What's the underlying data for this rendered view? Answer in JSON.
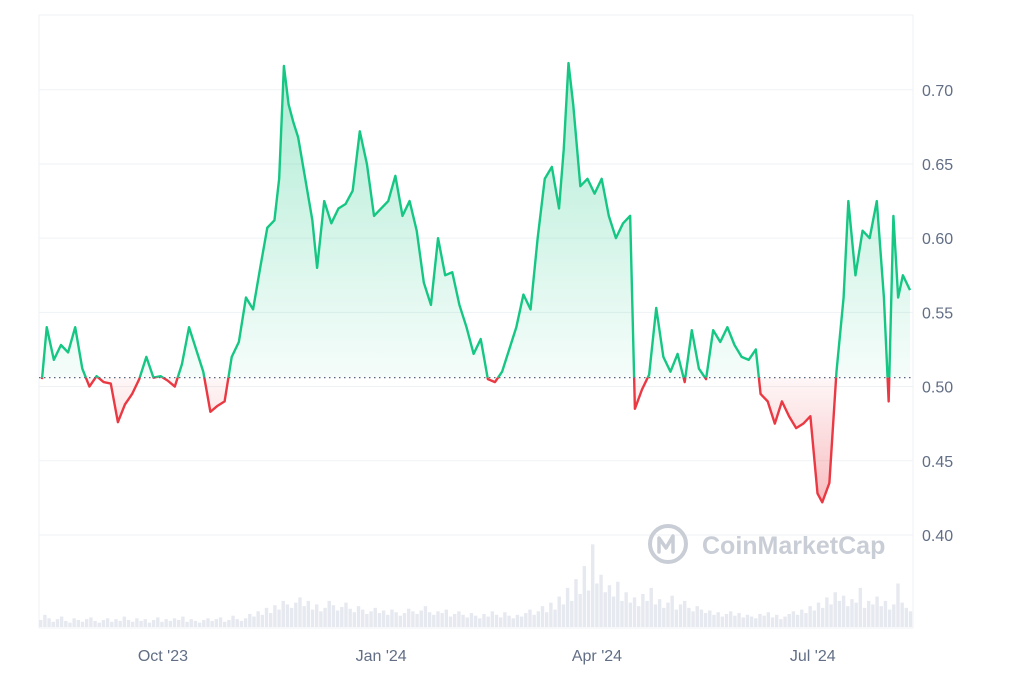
{
  "chart_data": {
    "type": "area",
    "baseline": 0.506,
    "ylim": [
      0.35,
      0.75
    ],
    "y_ticks": [
      {
        "value": 0.4,
        "label": "0.40"
      },
      {
        "value": 0.45,
        "label": "0.45"
      },
      {
        "value": 0.5,
        "label": "0.50"
      },
      {
        "value": 0.55,
        "label": "0.55"
      },
      {
        "value": 0.6,
        "label": "0.60"
      },
      {
        "value": 0.65,
        "label": "0.65"
      },
      {
        "value": 0.7,
        "label": "0.70"
      }
    ],
    "x_range": [
      "2023-08-11",
      "2024-08-11"
    ],
    "x_ticks": [
      {
        "date": "2023-10-01",
        "label": "Oct '23"
      },
      {
        "date": "2024-01-01",
        "label": "Jan '24"
      },
      {
        "date": "2024-04-01",
        "label": "Apr '24"
      },
      {
        "date": "2024-07-01",
        "label": "Jul '24"
      }
    ],
    "price": [
      [
        "2023-08-11",
        0.505
      ],
      [
        "2023-08-13",
        0.54
      ],
      [
        "2023-08-16",
        0.518
      ],
      [
        "2023-08-19",
        0.528
      ],
      [
        "2023-08-22",
        0.523
      ],
      [
        "2023-08-25",
        0.54
      ],
      [
        "2023-08-28",
        0.512
      ],
      [
        "2023-08-31",
        0.5
      ],
      [
        "2023-09-03",
        0.507
      ],
      [
        "2023-09-06",
        0.503
      ],
      [
        "2023-09-09",
        0.502
      ],
      [
        "2023-09-12",
        0.476
      ],
      [
        "2023-09-15",
        0.488
      ],
      [
        "2023-09-18",
        0.495
      ],
      [
        "2023-09-21",
        0.505
      ],
      [
        "2023-09-24",
        0.52
      ],
      [
        "2023-09-27",
        0.506
      ],
      [
        "2023-09-30",
        0.507
      ],
      [
        "2023-10-03",
        0.504
      ],
      [
        "2023-10-06",
        0.5
      ],
      [
        "2023-10-09",
        0.515
      ],
      [
        "2023-10-12",
        0.54
      ],
      [
        "2023-10-15",
        0.525
      ],
      [
        "2023-10-18",
        0.51
      ],
      [
        "2023-10-21",
        0.483
      ],
      [
        "2023-10-24",
        0.487
      ],
      [
        "2023-10-27",
        0.49
      ],
      [
        "2023-10-30",
        0.52
      ],
      [
        "2023-11-02",
        0.53
      ],
      [
        "2023-11-05",
        0.56
      ],
      [
        "2023-11-08",
        0.552
      ],
      [
        "2023-11-11",
        0.58
      ],
      [
        "2023-11-14",
        0.607
      ],
      [
        "2023-11-17",
        0.612
      ],
      [
        "2023-11-19",
        0.64
      ],
      [
        "2023-11-21",
        0.716
      ],
      [
        "2023-11-23",
        0.69
      ],
      [
        "2023-11-25",
        0.678
      ],
      [
        "2023-11-27",
        0.668
      ],
      [
        "2023-11-30",
        0.64
      ],
      [
        "2023-12-03",
        0.612
      ],
      [
        "2023-12-05",
        0.58
      ],
      [
        "2023-12-08",
        0.625
      ],
      [
        "2023-12-11",
        0.61
      ],
      [
        "2023-12-14",
        0.62
      ],
      [
        "2023-12-17",
        0.623
      ],
      [
        "2023-12-20",
        0.632
      ],
      [
        "2023-12-23",
        0.672
      ],
      [
        "2023-12-26",
        0.65
      ],
      [
        "2023-12-29",
        0.615
      ],
      [
        "2024-01-01",
        0.62
      ],
      [
        "2024-01-04",
        0.625
      ],
      [
        "2024-01-07",
        0.642
      ],
      [
        "2024-01-10",
        0.615
      ],
      [
        "2024-01-13",
        0.625
      ],
      [
        "2024-01-16",
        0.605
      ],
      [
        "2024-01-19",
        0.57
      ],
      [
        "2024-01-22",
        0.555
      ],
      [
        "2024-01-25",
        0.6
      ],
      [
        "2024-01-28",
        0.575
      ],
      [
        "2024-01-31",
        0.577
      ],
      [
        "2024-02-03",
        0.555
      ],
      [
        "2024-02-06",
        0.54
      ],
      [
        "2024-02-09",
        0.522
      ],
      [
        "2024-02-12",
        0.532
      ],
      [
        "2024-02-15",
        0.505
      ],
      [
        "2024-02-18",
        0.503
      ],
      [
        "2024-02-21",
        0.51
      ],
      [
        "2024-02-24",
        0.525
      ],
      [
        "2024-02-27",
        0.54
      ],
      [
        "2024-03-01",
        0.562
      ],
      [
        "2024-03-04",
        0.552
      ],
      [
        "2024-03-07",
        0.6
      ],
      [
        "2024-03-10",
        0.64
      ],
      [
        "2024-03-13",
        0.648
      ],
      [
        "2024-03-16",
        0.62
      ],
      [
        "2024-03-18",
        0.66
      ],
      [
        "2024-03-20",
        0.718
      ],
      [
        "2024-03-22",
        0.69
      ],
      [
        "2024-03-25",
        0.635
      ],
      [
        "2024-03-28",
        0.64
      ],
      [
        "2024-03-31",
        0.63
      ],
      [
        "2024-04-03",
        0.64
      ],
      [
        "2024-04-06",
        0.615
      ],
      [
        "2024-04-09",
        0.6
      ],
      [
        "2024-04-12",
        0.61
      ],
      [
        "2024-04-15",
        0.615
      ],
      [
        "2024-04-17",
        0.485
      ],
      [
        "2024-04-20",
        0.498
      ],
      [
        "2024-04-23",
        0.508
      ],
      [
        "2024-04-26",
        0.553
      ],
      [
        "2024-04-29",
        0.52
      ],
      [
        "2024-05-02",
        0.51
      ],
      [
        "2024-05-05",
        0.522
      ],
      [
        "2024-05-08",
        0.503
      ],
      [
        "2024-05-11",
        0.538
      ],
      [
        "2024-05-14",
        0.512
      ],
      [
        "2024-05-17",
        0.505
      ],
      [
        "2024-05-20",
        0.538
      ],
      [
        "2024-05-23",
        0.53
      ],
      [
        "2024-05-26",
        0.54
      ],
      [
        "2024-05-29",
        0.528
      ],
      [
        "2024-06-01",
        0.52
      ],
      [
        "2024-06-04",
        0.518
      ],
      [
        "2024-06-07",
        0.525
      ],
      [
        "2024-06-09",
        0.495
      ],
      [
        "2024-06-12",
        0.49
      ],
      [
        "2024-06-15",
        0.475
      ],
      [
        "2024-06-18",
        0.49
      ],
      [
        "2024-06-21",
        0.48
      ],
      [
        "2024-06-24",
        0.472
      ],
      [
        "2024-06-27",
        0.475
      ],
      [
        "2024-06-30",
        0.48
      ],
      [
        "2024-07-03",
        0.428
      ],
      [
        "2024-07-05",
        0.422
      ],
      [
        "2024-07-08",
        0.435
      ],
      [
        "2024-07-11",
        0.51
      ],
      [
        "2024-07-14",
        0.56
      ],
      [
        "2024-07-16",
        0.625
      ],
      [
        "2024-07-19",
        0.575
      ],
      [
        "2024-07-22",
        0.605
      ],
      [
        "2024-07-25",
        0.6
      ],
      [
        "2024-07-28",
        0.625
      ],
      [
        "2024-07-31",
        0.56
      ],
      [
        "2024-08-02",
        0.49
      ],
      [
        "2024-08-04",
        0.615
      ],
      [
        "2024-08-06",
        0.56
      ],
      [
        "2024-08-08",
        0.575
      ],
      [
        "2024-08-11",
        0.565
      ]
    ],
    "volume_ylim": [
      0,
      1
    ],
    "volume": [
      0.08,
      0.14,
      0.1,
      0.06,
      0.09,
      0.12,
      0.07,
      0.05,
      0.1,
      0.08,
      0.06,
      0.09,
      0.11,
      0.07,
      0.05,
      0.08,
      0.1,
      0.06,
      0.09,
      0.07,
      0.12,
      0.08,
      0.06,
      0.1,
      0.07,
      0.09,
      0.05,
      0.08,
      0.11,
      0.06,
      0.09,
      0.07,
      0.1,
      0.08,
      0.12,
      0.06,
      0.09,
      0.07,
      0.05,
      0.08,
      0.1,
      0.07,
      0.09,
      0.11,
      0.06,
      0.08,
      0.13,
      0.09,
      0.07,
      0.1,
      0.15,
      0.12,
      0.18,
      0.14,
      0.22,
      0.16,
      0.25,
      0.2,
      0.3,
      0.26,
      0.22,
      0.28,
      0.34,
      0.24,
      0.3,
      0.2,
      0.26,
      0.18,
      0.22,
      0.3,
      0.25,
      0.19,
      0.23,
      0.28,
      0.21,
      0.17,
      0.24,
      0.2,
      0.15,
      0.18,
      0.22,
      0.16,
      0.19,
      0.14,
      0.2,
      0.17,
      0.13,
      0.16,
      0.21,
      0.18,
      0.15,
      0.19,
      0.24,
      0.17,
      0.14,
      0.18,
      0.16,
      0.2,
      0.12,
      0.15,
      0.18,
      0.14,
      0.11,
      0.16,
      0.13,
      0.1,
      0.15,
      0.12,
      0.18,
      0.14,
      0.11,
      0.17,
      0.13,
      0.1,
      0.14,
      0.12,
      0.16,
      0.2,
      0.14,
      0.18,
      0.24,
      0.17,
      0.28,
      0.2,
      0.35,
      0.26,
      0.45,
      0.3,
      0.55,
      0.38,
      0.7,
      0.42,
      0.95,
      0.5,
      0.6,
      0.4,
      0.48,
      0.35,
      0.52,
      0.3,
      0.4,
      0.28,
      0.34,
      0.24,
      0.38,
      0.3,
      0.45,
      0.26,
      0.32,
      0.22,
      0.28,
      0.36,
      0.2,
      0.26,
      0.3,
      0.22,
      0.18,
      0.24,
      0.2,
      0.16,
      0.19,
      0.14,
      0.17,
      0.12,
      0.15,
      0.18,
      0.13,
      0.16,
      0.11,
      0.14,
      0.12,
      0.1,
      0.15,
      0.13,
      0.17,
      0.11,
      0.14,
      0.09,
      0.12,
      0.15,
      0.18,
      0.14,
      0.2,
      0.16,
      0.24,
      0.19,
      0.28,
      0.22,
      0.34,
      0.26,
      0.4,
      0.3,
      0.36,
      0.24,
      0.32,
      0.28,
      0.45,
      0.22,
      0.3,
      0.26,
      0.35,
      0.24,
      0.3,
      0.2,
      0.26,
      0.5,
      0.28,
      0.22,
      0.18
    ]
  },
  "watermark": {
    "text": "CoinMarketCap",
    "icon": "coinmarketcap-logo-icon"
  },
  "colors": {
    "up": "#16c784",
    "down": "#ea3943",
    "grid": "#eff2f5",
    "baseline_dots": "#58667e",
    "volume_bar": "#e6e9ef",
    "axis_text": "#616e85"
  }
}
